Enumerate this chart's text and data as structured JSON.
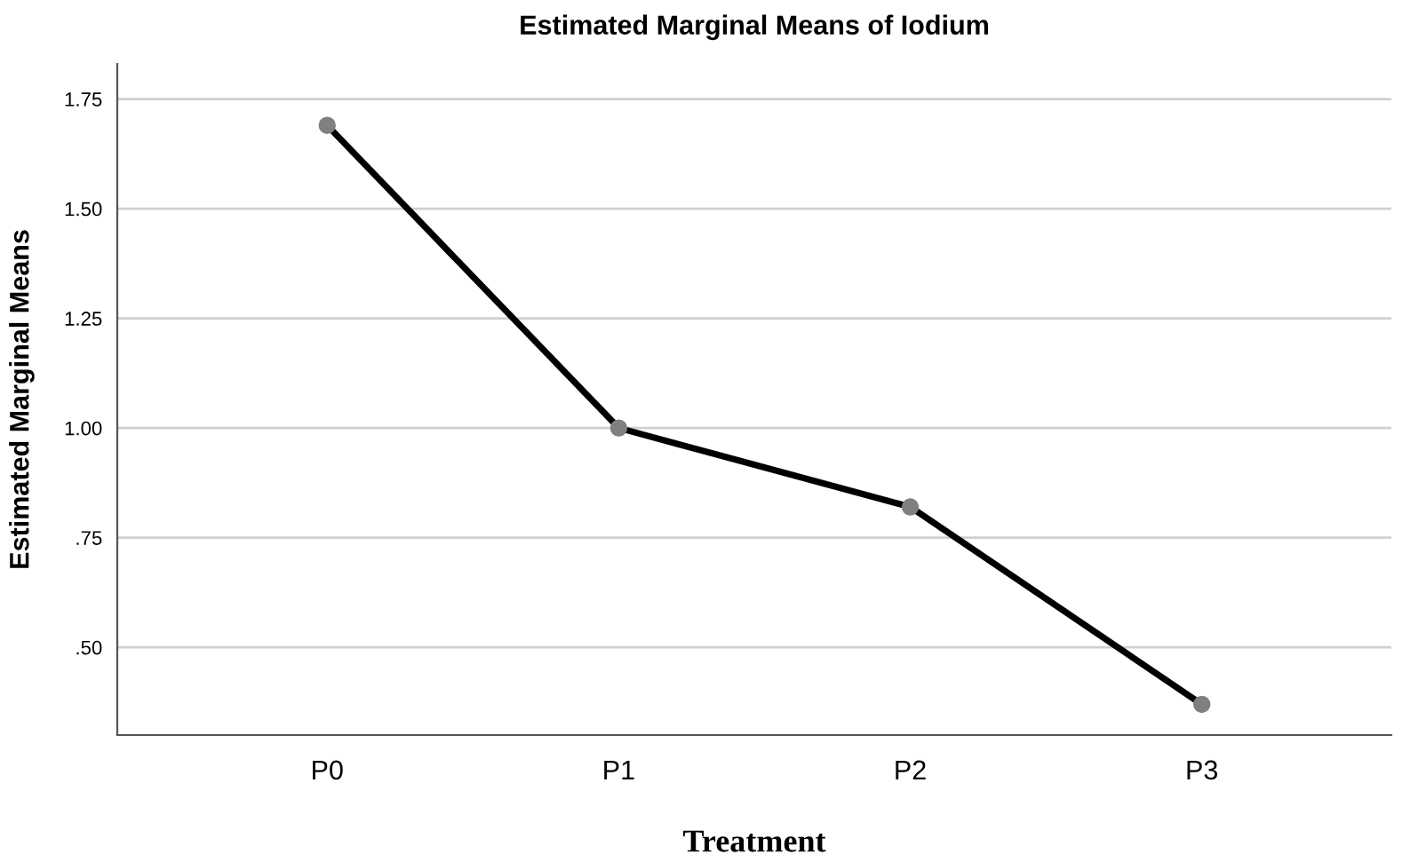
{
  "chart_data": {
    "type": "line",
    "title": "Estimated Marginal Means of Iodium",
    "xlabel": "Treatment",
    "ylabel": "Estimated Marginal Means",
    "categories": [
      "P0",
      "P1",
      "P2",
      "P3"
    ],
    "series": [
      {
        "color": "#000000",
        "values": [
          1.69,
          1.0,
          0.82,
          0.37
        ]
      }
    ],
    "ylim": [
      0.3,
      1.83
    ],
    "yticks": [
      {
        "value": 0.5,
        "label": ".50"
      },
      {
        "value": 0.75,
        "label": ".75"
      },
      {
        "value": 1.0,
        "label": "1.00"
      },
      {
        "value": 1.25,
        "label": "1.25"
      },
      {
        "value": 1.5,
        "label": "1.50"
      },
      {
        "value": 1.75,
        "label": "1.75"
      }
    ],
    "grid": "y",
    "marker": "circle",
    "line_style": "solid"
  }
}
